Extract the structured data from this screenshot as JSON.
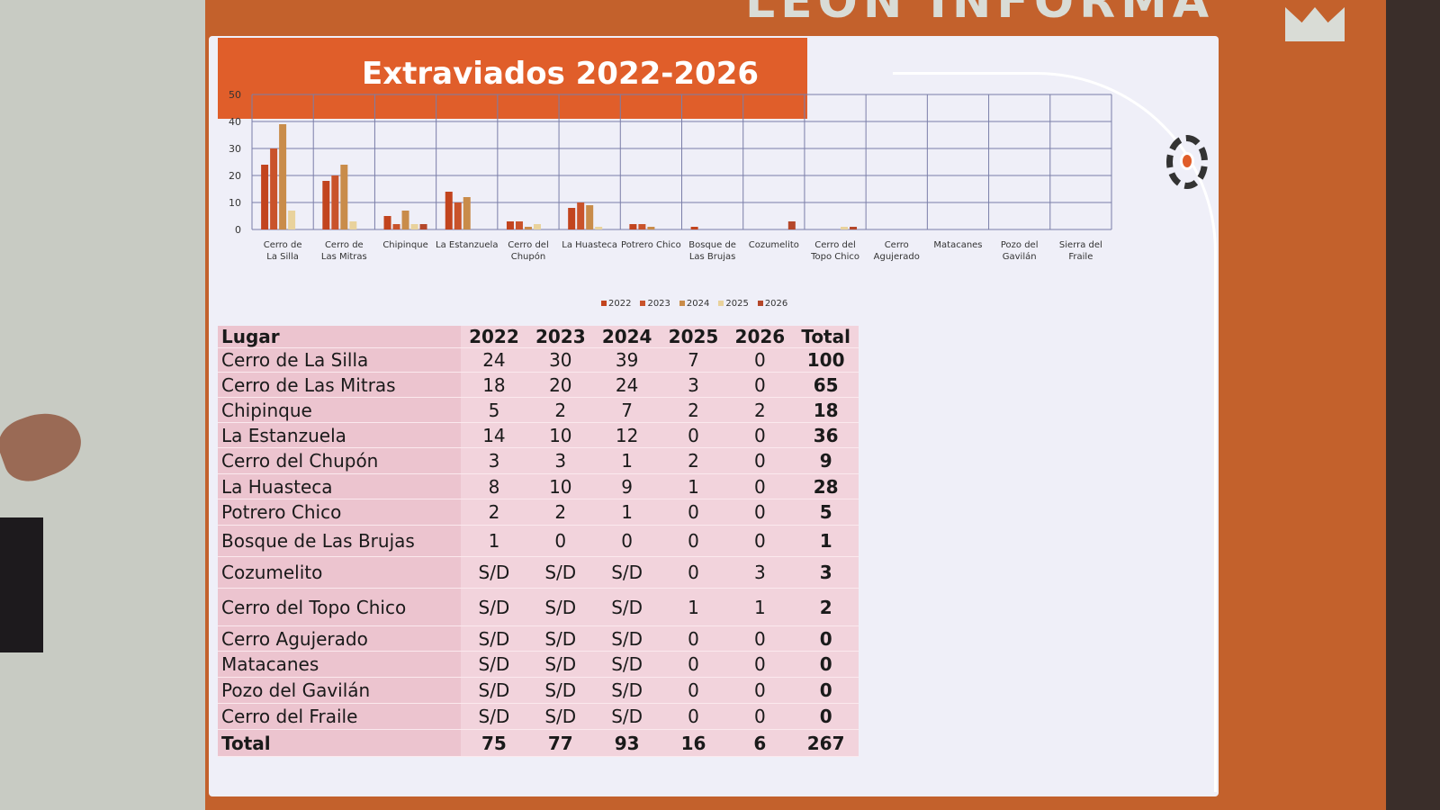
{
  "backdrop": {
    "text": "LEÓN INFORMA"
  },
  "slide": {
    "title": "Extraviados 2022-2026"
  },
  "chart_data": {
    "type": "bar",
    "title": "Extraviados 2022-2026",
    "categories": [
      "Cerro de La Silla",
      "Cerro de Las Mitras",
      "Chipinque",
      "La Estanzuela",
      "Cerro del Chupón",
      "La Huasteca",
      "Potrero Chico",
      "Bosque de Las Brujas",
      "Cozumelito",
      "Cerro del Topo Chico",
      "Cerro Agujerado",
      "Matacanes",
      "Pozo del Gavilán",
      "Sierra del Fraile"
    ],
    "series": [
      {
        "name": "2022",
        "color": "#c2441e",
        "values": [
          24,
          18,
          5,
          14,
          3,
          8,
          2,
          1,
          null,
          null,
          null,
          null,
          null,
          null
        ]
      },
      {
        "name": "2023",
        "color": "#c9532b",
        "values": [
          30,
          20,
          2,
          10,
          3,
          10,
          2,
          0,
          null,
          null,
          null,
          null,
          null,
          null
        ]
      },
      {
        "name": "2024",
        "color": "#c98c4a",
        "values": [
          39,
          24,
          7,
          12,
          1,
          9,
          1,
          0,
          null,
          null,
          null,
          null,
          null,
          null
        ]
      },
      {
        "name": "2025",
        "color": "#e9d29c",
        "values": [
          7,
          3,
          2,
          0,
          2,
          1,
          0,
          0,
          0,
          1,
          0,
          0,
          0,
          0
        ]
      },
      {
        "name": "2026",
        "color": "#b5472a",
        "values": [
          0,
          0,
          2,
          0,
          0,
          0,
          0,
          0,
          3,
          1,
          0,
          0,
          0,
          0
        ]
      }
    ],
    "yticks": [
      0,
      10,
      20,
      30,
      40,
      50
    ],
    "ylim": [
      0,
      50
    ],
    "grid": true,
    "legend": "bottom"
  },
  "table": {
    "headers": [
      "Lugar",
      "2022",
      "2023",
      "2024",
      "2025",
      "2026",
      "Total"
    ],
    "rows": [
      [
        "Cerro de La Silla",
        "24",
        "30",
        "39",
        "7",
        "0",
        "100"
      ],
      [
        "Cerro de Las Mitras",
        "18",
        "20",
        "24",
        "3",
        "0",
        "65"
      ],
      [
        "Chipinque",
        "5",
        "2",
        "7",
        "2",
        "2",
        "18"
      ],
      [
        "La Estanzuela",
        "14",
        "10",
        "12",
        "0",
        "0",
        "36"
      ],
      [
        "Cerro del Chupón",
        "3",
        "3",
        "1",
        "2",
        "0",
        "9"
      ],
      [
        "La Huasteca",
        "8",
        "10",
        "9",
        "1",
        "0",
        "28"
      ],
      [
        "Potrero Chico",
        "2",
        "2",
        "1",
        "0",
        "0",
        "5"
      ],
      [
        "Bosque de Las Brujas",
        "1",
        "0",
        "0",
        "0",
        "0",
        "1"
      ],
      [
        "Cozumelito",
        "S/D",
        "S/D",
        "S/D",
        "0",
        "3",
        "3"
      ],
      [
        "Cerro del Topo Chico",
        "S/D",
        "S/D",
        "S/D",
        "1",
        "1",
        "2"
      ],
      [
        "Cerro Agujerado",
        "S/D",
        "S/D",
        "S/D",
        "0",
        "0",
        "0"
      ],
      [
        "Matacanes",
        "S/D",
        "S/D",
        "S/D",
        "0",
        "0",
        "0"
      ],
      [
        "Pozo del Gavilán",
        "S/D",
        "S/D",
        "S/D",
        "0",
        "0",
        "0"
      ],
      [
        "Cerro del Fraile",
        "S/D",
        "S/D",
        "S/D",
        "0",
        "0",
        "0"
      ]
    ],
    "total": [
      "Total",
      "75",
      "77",
      "93",
      "16",
      "6",
      "267"
    ]
  }
}
